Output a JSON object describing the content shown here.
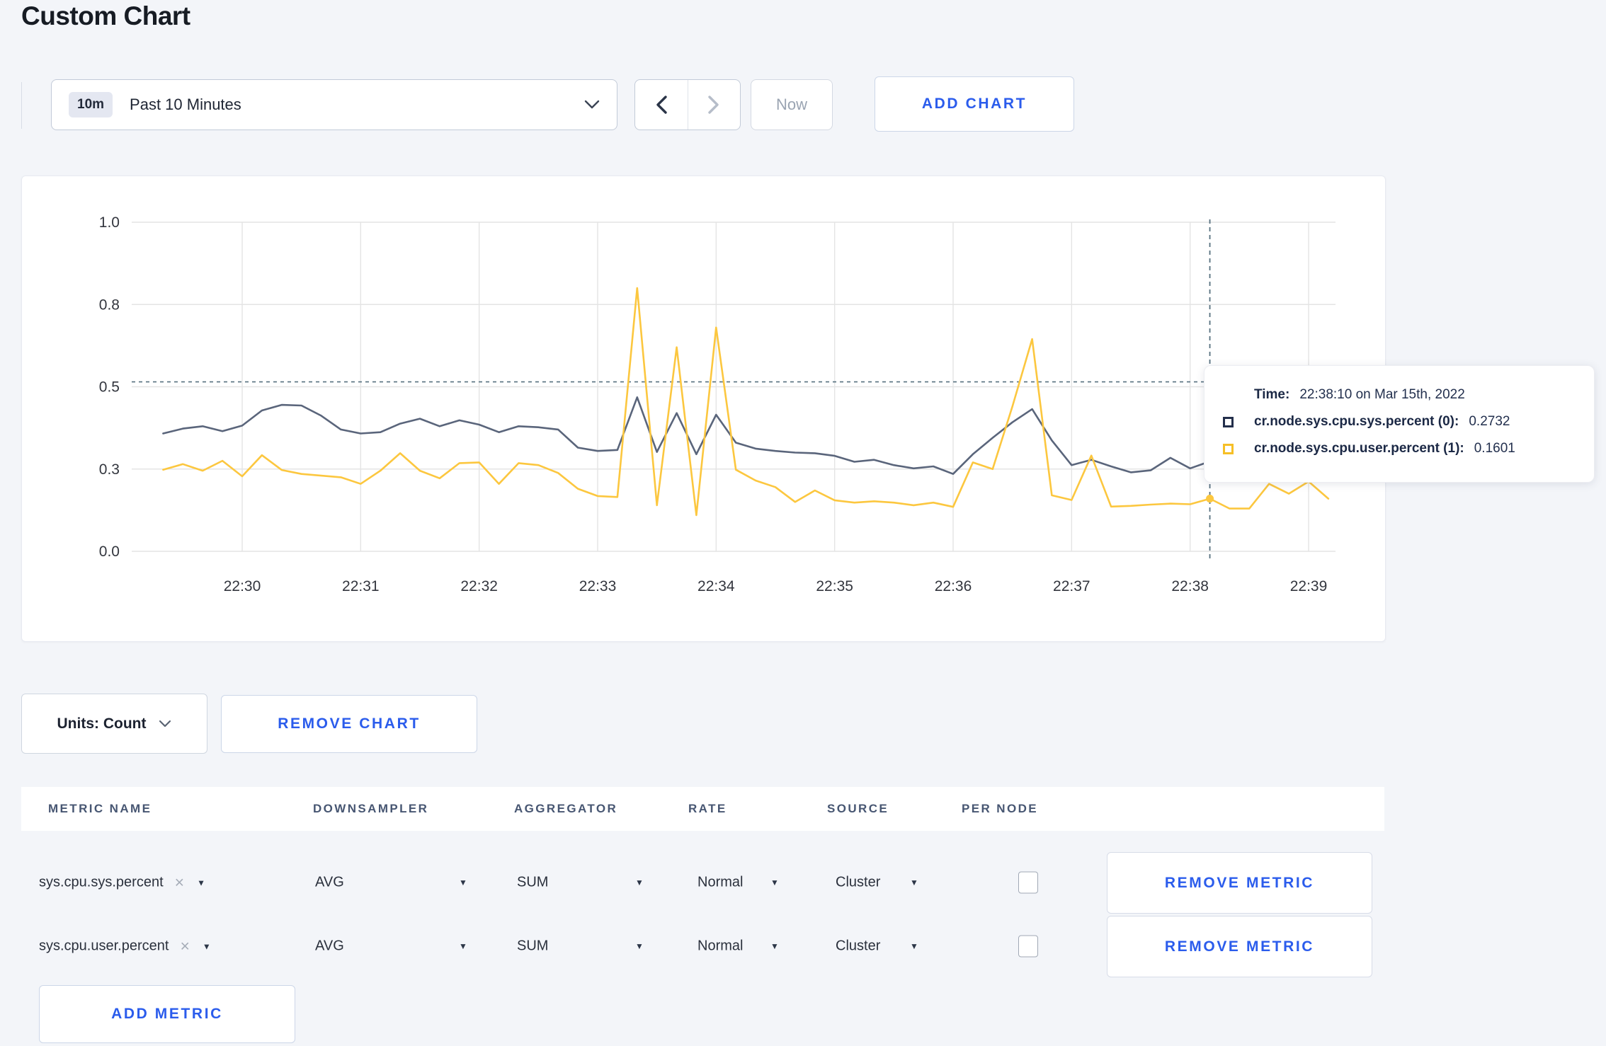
{
  "page": {
    "title": "Custom Chart"
  },
  "colors": {
    "accent_blue": "#2b5cec",
    "page_bg": "#f3f5f9",
    "grid": "#e4e4e4",
    "axis_text": "#33363e",
    "crosshair": "#56707f",
    "series_sys": "#5a657b",
    "series_user": "#fcc73f"
  },
  "icons": {
    "caret_down": "▼",
    "close_x": "×"
  },
  "toolbar": {
    "time_badge": "10m",
    "time_label": "Past 10 Minutes",
    "now_label": "Now",
    "add_chart_label": "ADD CHART"
  },
  "chart_data": {
    "type": "line",
    "title": "",
    "xlabel": "",
    "ylabel": "",
    "ylim": [
      0,
      1
    ],
    "grid": true,
    "legend_position": "tooltip-only",
    "x_start": "22:29:20",
    "x_step_seconds": 10,
    "x_ticks": [
      "22:30",
      "22:31",
      "22:32",
      "22:33",
      "22:34",
      "22:35",
      "22:36",
      "22:37",
      "22:38",
      "22:39"
    ],
    "y_ticks": [
      {
        "v": 0.0,
        "label": "0.0"
      },
      {
        "v": 0.25,
        "label": "0.3"
      },
      {
        "v": 0.5,
        "label": "0.5"
      },
      {
        "v": 0.75,
        "label": "0.8"
      },
      {
        "v": 1.0,
        "label": "1.0"
      }
    ],
    "series": [
      {
        "name": "cr.node.sys.cpu.sys.percent (0)",
        "color": "#5a657b",
        "values": [
          0.358,
          0.373,
          0.38,
          0.365,
          0.382,
          0.428,
          0.445,
          0.443,
          0.412,
          0.37,
          0.358,
          0.362,
          0.388,
          0.403,
          0.38,
          0.398,
          0.385,
          0.362,
          0.38,
          0.377,
          0.37,
          0.315,
          0.305,
          0.308,
          0.468,
          0.302,
          0.42,
          0.295,
          0.415,
          0.33,
          0.312,
          0.305,
          0.3,
          0.298,
          0.29,
          0.272,
          0.278,
          0.262,
          0.252,
          0.258,
          0.235,
          0.295,
          0.345,
          0.392,
          0.432,
          0.337,
          0.262,
          0.278,
          0.258,
          0.24,
          0.246,
          0.284,
          0.252,
          0.2732,
          0.262,
          0.268,
          0.265,
          0.27,
          0.268,
          0.265
        ]
      },
      {
        "name": "cr.node.sys.cpu.user.percent (1)",
        "color": "#fcc73f",
        "values": [
          0.248,
          0.265,
          0.245,
          0.275,
          0.228,
          0.292,
          0.247,
          0.235,
          0.23,
          0.225,
          0.205,
          0.245,
          0.298,
          0.245,
          0.222,
          0.268,
          0.27,
          0.205,
          0.268,
          0.262,
          0.238,
          0.19,
          0.168,
          0.165,
          0.8,
          0.14,
          0.62,
          0.11,
          0.68,
          0.248,
          0.215,
          0.195,
          0.15,
          0.185,
          0.155,
          0.148,
          0.152,
          0.148,
          0.14,
          0.148,
          0.135,
          0.27,
          0.25,
          0.44,
          0.645,
          0.17,
          0.156,
          0.291,
          0.136,
          0.138,
          0.142,
          0.145,
          0.143,
          0.1601,
          0.13,
          0.13,
          0.205,
          0.175,
          0.212,
          0.16
        ]
      }
    ],
    "crosshair": {
      "index": 53,
      "time": "22:38:10",
      "hline_value": 0.515,
      "point_values": [
        0.2732,
        0.1601
      ]
    }
  },
  "tooltip": {
    "time_label": "Time:",
    "time_value": "22:38:10 on Mar 15th, 2022",
    "series": [
      {
        "label": "cr.node.sys.cpu.sys.percent (0):",
        "value": "0.2732",
        "color": "#232f4b"
      },
      {
        "label": "cr.node.sys.cpu.user.percent (1):",
        "value": "0.1601",
        "color": "#f6bf26"
      }
    ]
  },
  "chart_controls": {
    "units_label": "Units: Count",
    "remove_chart_label": "REMOVE CHART"
  },
  "metrics_table": {
    "headers": [
      "METRIC NAME",
      "DOWNSAMPLER",
      "AGGREGATOR",
      "RATE",
      "SOURCE",
      "PER NODE"
    ],
    "rows": [
      {
        "metric": "sys.cpu.sys.percent",
        "downsampler": "AVG",
        "aggregator": "SUM",
        "rate": "Normal",
        "source": "Cluster",
        "per_node": false
      },
      {
        "metric": "sys.cpu.user.percent",
        "downsampler": "AVG",
        "aggregator": "SUM",
        "rate": "Normal",
        "source": "Cluster",
        "per_node": false
      }
    ],
    "remove_metric_label": "REMOVE METRIC",
    "add_metric_label": "ADD METRIC"
  }
}
